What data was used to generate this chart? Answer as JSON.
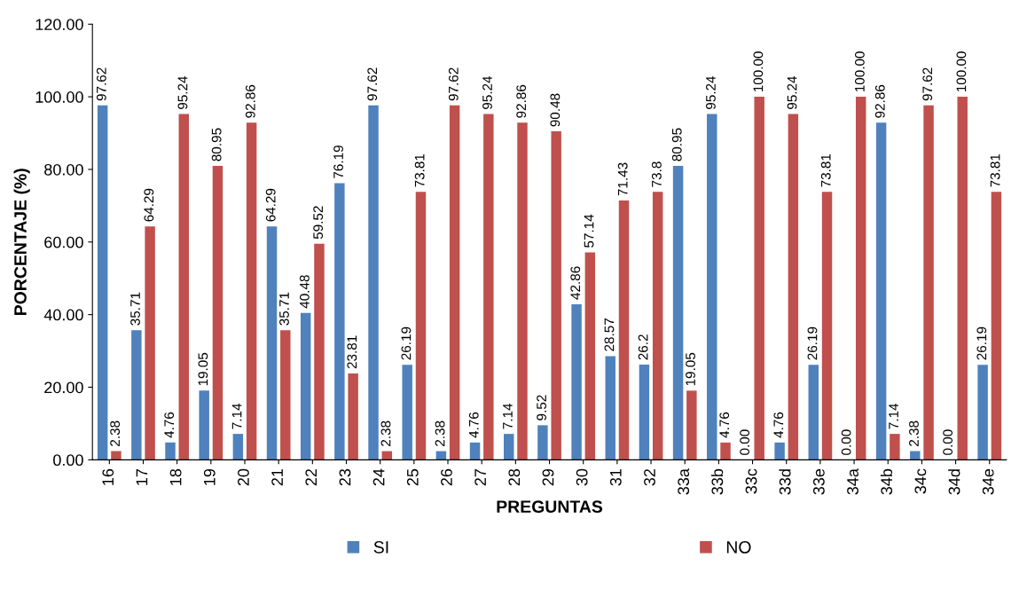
{
  "chart_data": {
    "type": "bar",
    "xlabel": "PREGUNTAS",
    "ylabel": "PORCENTAJE (%)",
    "categories": [
      "16",
      "17",
      "18",
      "19",
      "20",
      "21",
      "22",
      "23",
      "24",
      "25",
      "26",
      "27",
      "28",
      "29",
      "30",
      "31",
      "32",
      "33a",
      "33b",
      "33c",
      "33d",
      "33e",
      "34a",
      "34b",
      "34c",
      "34d",
      "34e"
    ],
    "series": [
      {
        "name": "SI",
        "color": "#4f81bd",
        "values": [
          97.62,
          35.71,
          4.76,
          19.05,
          7.14,
          64.29,
          40.48,
          76.19,
          97.62,
          26.19,
          2.38,
          4.76,
          7.14,
          9.52,
          42.86,
          28.57,
          26.2,
          80.95,
          95.24,
          0,
          4.76,
          26.19,
          0,
          92.86,
          2.38,
          0,
          26.19
        ],
        "value_labels": [
          "97.62",
          "35.71",
          "4.76",
          "19.05",
          "7.14",
          "64.29",
          "40.48",
          "76.19",
          "97.62",
          "26.19",
          "2.38",
          "4.76",
          "7.14",
          "9.52",
          "42.86",
          "28.57",
          "26.2",
          "80.95",
          "95.24",
          "0.00",
          "4.76",
          "26.19",
          "0.00",
          "92.86",
          "2.38",
          "0.00",
          "26.19"
        ]
      },
      {
        "name": "NO",
        "color": "#c0504d",
        "values": [
          2.38,
          64.29,
          95.24,
          80.95,
          92.86,
          35.71,
          59.52,
          23.81,
          2.38,
          73.81,
          97.62,
          95.24,
          92.86,
          90.48,
          57.14,
          71.43,
          73.8,
          19.05,
          4.76,
          100,
          95.24,
          73.81,
          100,
          7.14,
          97.62,
          100,
          73.81
        ],
        "value_labels": [
          "2.38",
          "64.29",
          "95.24",
          "80.95",
          "92.86",
          "35.71",
          "59.52",
          "23.81",
          "2.38",
          "73.81",
          "97.62",
          "95.24",
          "92.86",
          "90.48",
          "57.14",
          "71.43",
          "73.8",
          "19.05",
          "4.76",
          "100.00",
          "95.24",
          "73.81",
          "100.00",
          "7.14",
          "97.62",
          "100.00",
          "73.81"
        ]
      }
    ],
    "ylim": [
      0,
      120
    ],
    "yticks": [
      {
        "value": 0,
        "label": "0.00"
      },
      {
        "value": 20,
        "label": "20.00"
      },
      {
        "value": 40,
        "label": "40.00"
      },
      {
        "value": 60,
        "label": "60.00"
      },
      {
        "value": 80,
        "label": "80.00"
      },
      {
        "value": 100,
        "label": "100.00"
      },
      {
        "value": 120,
        "label": "120.00"
      }
    ],
    "grid": false,
    "legend": "bottom"
  }
}
